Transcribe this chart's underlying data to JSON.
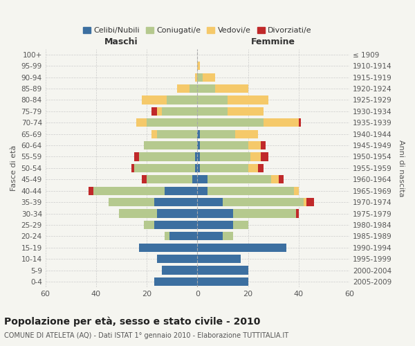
{
  "age_groups": [
    "0-4",
    "5-9",
    "10-14",
    "15-19",
    "20-24",
    "25-29",
    "30-34",
    "35-39",
    "40-44",
    "45-49",
    "50-54",
    "55-59",
    "60-64",
    "65-69",
    "70-74",
    "75-79",
    "80-84",
    "85-89",
    "90-94",
    "95-99",
    "100+"
  ],
  "birth_years": [
    "2005-2009",
    "2000-2004",
    "1995-1999",
    "1990-1994",
    "1985-1989",
    "1980-1984",
    "1975-1979",
    "1970-1974",
    "1965-1969",
    "1960-1964",
    "1955-1959",
    "1950-1954",
    "1945-1949",
    "1940-1944",
    "1935-1939",
    "1930-1934",
    "1925-1929",
    "1920-1924",
    "1915-1919",
    "1910-1914",
    "≤ 1909"
  ],
  "colors": {
    "celibi": "#3c6fa0",
    "coniugati": "#b5c98e",
    "vedovi": "#f5c96a",
    "divorziati": "#c0292a"
  },
  "maschi": {
    "celibi": [
      17,
      14,
      16,
      23,
      11,
      17,
      16,
      17,
      13,
      2,
      1,
      1,
      0,
      0,
      0,
      0,
      0,
      0,
      0,
      0,
      0
    ],
    "coniugati": [
      0,
      0,
      0,
      0,
      2,
      4,
      15,
      18,
      28,
      18,
      24,
      22,
      21,
      16,
      20,
      14,
      12,
      3,
      0,
      0,
      0
    ],
    "vedovi": [
      0,
      0,
      0,
      0,
      0,
      0,
      0,
      0,
      0,
      0,
      0,
      0,
      0,
      2,
      4,
      2,
      10,
      5,
      1,
      0,
      0
    ],
    "divorziati": [
      0,
      0,
      0,
      0,
      0,
      0,
      0,
      0,
      2,
      2,
      1,
      2,
      0,
      0,
      0,
      2,
      0,
      0,
      0,
      0,
      0
    ]
  },
  "femmine": {
    "celibi": [
      20,
      20,
      17,
      35,
      10,
      14,
      14,
      10,
      4,
      4,
      1,
      1,
      1,
      1,
      0,
      0,
      0,
      0,
      0,
      0,
      0
    ],
    "coniugati": [
      0,
      0,
      0,
      0,
      4,
      6,
      25,
      32,
      34,
      25,
      19,
      20,
      19,
      14,
      26,
      12,
      12,
      7,
      2,
      0,
      0
    ],
    "vedovi": [
      0,
      0,
      0,
      0,
      0,
      0,
      0,
      1,
      2,
      3,
      4,
      4,
      5,
      9,
      14,
      14,
      16,
      13,
      5,
      1,
      0
    ],
    "divorziati": [
      0,
      0,
      0,
      0,
      0,
      0,
      1,
      3,
      0,
      2,
      2,
      3,
      2,
      0,
      1,
      0,
      0,
      0,
      0,
      0,
      0
    ]
  },
  "xlim": 60,
  "title": "Popolazione per età, sesso e stato civile - 2010",
  "subtitle": "COMUNE DI ATELETA (AQ) - Dati ISTAT 1° gennaio 2010 - Elaborazione TUTTITALIA.IT",
  "ylabel_left": "Fasce di età",
  "ylabel_right": "Anni di nascita",
  "xlabel_maschi": "Maschi",
  "xlabel_femmine": "Femmine",
  "legend_labels": [
    "Celibi/Nubili",
    "Coniugati/e",
    "Vedovi/e",
    "Divorziati/e"
  ],
  "bg_color": "#f5f5f0"
}
